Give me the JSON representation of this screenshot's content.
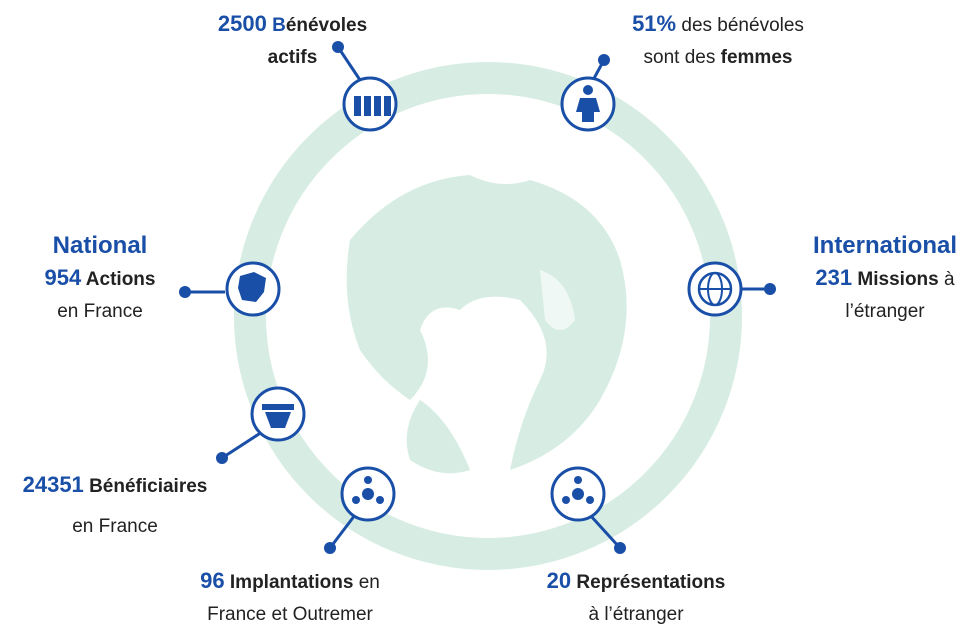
{
  "stats": [
    {
      "lines": [
        [
          "2500",
          " B",
          "énévoles"
        ],
        [
          "actifs"
        ]
      ]
    },
    {
      "lines": [
        [
          "51%",
          " des bénévoles"
        ],
        [
          "sont des ",
          "femmes"
        ]
      ]
    },
    {
      "heading": "National",
      "lines": [
        [
          "954",
          " Actions"
        ],
        [
          "en France"
        ]
      ]
    },
    {
      "heading": "International",
      "lines": [
        [
          "231",
          " Missions",
          " à"
        ],
        [
          "l’étranger"
        ]
      ]
    },
    {
      "lines": [
        [
          "24351",
          " Bénéficiaires"
        ],
        [
          "en France"
        ]
      ]
    },
    {
      "lines": [
        [
          "96",
          " Implantations",
          " en"
        ],
        [
          "France et Outremer"
        ]
      ]
    },
    {
      "lines": [
        [
          "20",
          " Représentations"
        ],
        [
          "à l’étranger"
        ]
      ]
    }
  ]
}
